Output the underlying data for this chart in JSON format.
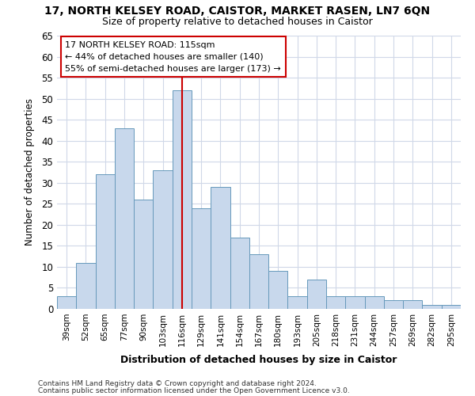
{
  "title_line1": "17, NORTH KELSEY ROAD, CAISTOR, MARKET RASEN, LN7 6QN",
  "title_line2": "Size of property relative to detached houses in Caistor",
  "xlabel": "Distribution of detached houses by size in Caistor",
  "ylabel": "Number of detached properties",
  "categories": [
    "39sqm",
    "52sqm",
    "65sqm",
    "77sqm",
    "90sqm",
    "103sqm",
    "116sqm",
    "129sqm",
    "141sqm",
    "154sqm",
    "167sqm",
    "180sqm",
    "193sqm",
    "205sqm",
    "218sqm",
    "231sqm",
    "244sqm",
    "257sqm",
    "269sqm",
    "282sqm",
    "295sqm"
  ],
  "values": [
    3,
    11,
    32,
    43,
    26,
    33,
    52,
    24,
    29,
    17,
    13,
    9,
    3,
    7,
    3,
    3,
    3,
    2,
    2,
    1,
    1
  ],
  "bar_color": "#c8d8ec",
  "bar_edge_color": "#6699bb",
  "highlight_color": "#cc0000",
  "vline_x": 6,
  "annotation_text": "17 NORTH KELSEY ROAD: 115sqm\n← 44% of detached houses are smaller (140)\n55% of semi-detached houses are larger (173) →",
  "annotation_box_color": "#ffffff",
  "annotation_box_edge_color": "#cc0000",
  "ylim": [
    0,
    65
  ],
  "yticks": [
    0,
    5,
    10,
    15,
    20,
    25,
    30,
    35,
    40,
    45,
    50,
    55,
    60,
    65
  ],
  "footer_line1": "Contains HM Land Registry data © Crown copyright and database right 2024.",
  "footer_line2": "Contains public sector information licensed under the Open Government Licence v3.0.",
  "plot_bg_color": "#ffffff",
  "fig_bg_color": "#ffffff",
  "grid_color": "#d0d8e8",
  "figsize": [
    6.0,
    5.0
  ],
  "dpi": 100
}
